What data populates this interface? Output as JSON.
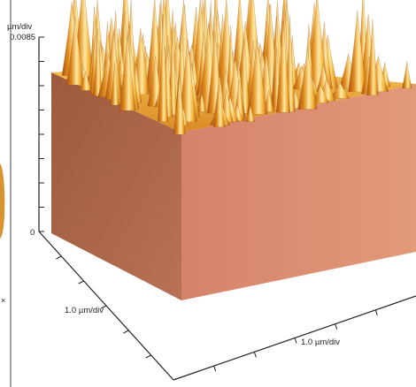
{
  "chart_data": {
    "type": "surface",
    "z_axis": {
      "unit_label": "µm/div",
      "max_label": "0.0085",
      "min_label": "0",
      "range": [
        0,
        0.0085
      ]
    },
    "x_axis": {
      "unit_label": "1.0 µm/div"
    },
    "y_axis": {
      "unit_label": "1.0 µm/div"
    },
    "grid": false,
    "legend": "none"
  },
  "colors": {
    "left_wall": "#b3694a",
    "front_wall": "#d9896a",
    "peak_dark": "#c96a1b",
    "peak_mid": "#f0b038",
    "peak_light": "#fff3c2",
    "axis": "#222222",
    "background": "#ffffff"
  }
}
